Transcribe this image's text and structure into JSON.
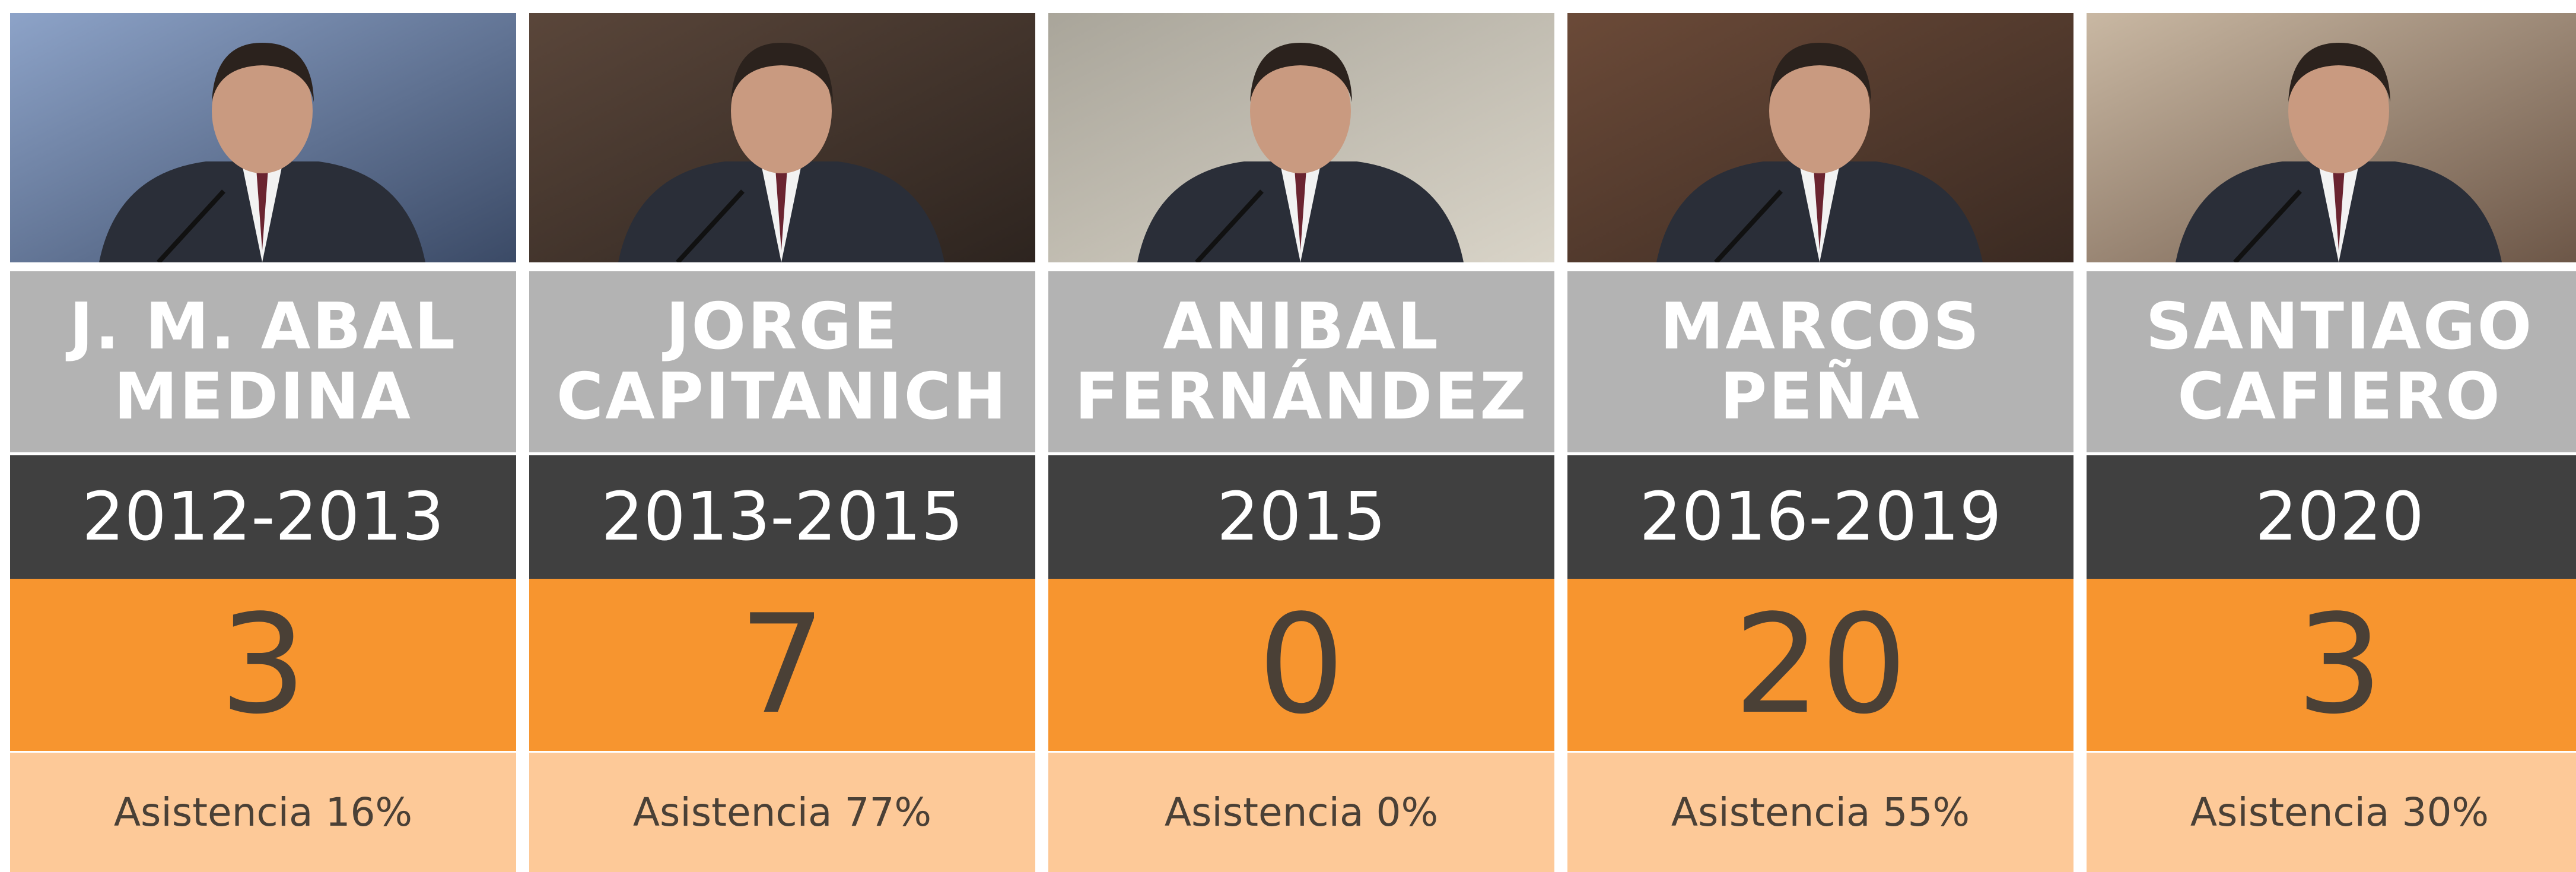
{
  "cards": [
    {
      "name": [
        "J. M. ABAL",
        "MEDINA"
      ],
      "years": "2012-2013",
      "count": 3,
      "attendance": "Asistencia 16%"
    },
    {
      "name": [
        "JORGE",
        "CAPITANICH"
      ],
      "years": "2013-2015",
      "count": 7,
      "attendance": "Asistencia 77%"
    },
    {
      "name": [
        "ANIBAL",
        "FERNÁNDEZ"
      ],
      "years": "2015",
      "count": 0,
      "attendance": "Asistencia 0%"
    },
    {
      "name": [
        "MARCOS",
        "PEÑA"
      ],
      "years": "2016-2019",
      "count": 20,
      "attendance": "Asistencia 55%"
    },
    {
      "name": [
        "SANTIAGO",
        "CAFIERO"
      ],
      "years": "2020",
      "count": 3,
      "attendance": "Asistencia 30%"
    }
  ]
}
